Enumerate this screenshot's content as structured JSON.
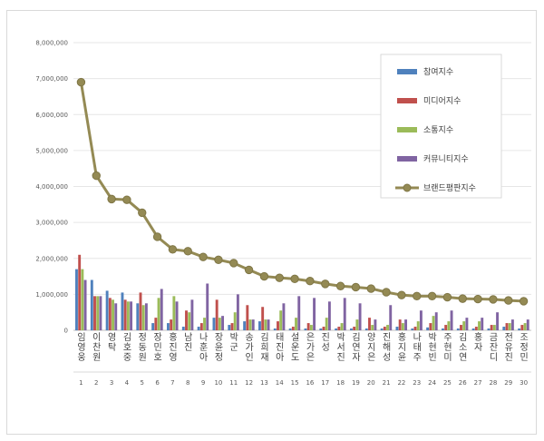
{
  "chart_data": {
    "type": "bar",
    "ylim": [
      0,
      8000000
    ],
    "yticks": [
      "0",
      "1,000,000",
      "2,000,000",
      "3,000,000",
      "4,000,000",
      "5,000,000",
      "6,000,000",
      "7,000,000",
      "8,000,000"
    ],
    "categories": [
      "임영웅",
      "이찬원",
      "영탁",
      "김호중",
      "정동원",
      "장민호",
      "홍진영",
      "남진",
      "나훈아",
      "장윤정",
      "박군",
      "송가인",
      "김희재",
      "태진아",
      "설운도",
      "은가은",
      "진성",
      "박서진",
      "김연자",
      "양지은",
      "진해성",
      "홍지윤",
      "나태주",
      "박현빈",
      "주현미",
      "김소연",
      "홍자",
      "금잔디",
      "전유진",
      "조정민"
    ],
    "ranks": [
      "1",
      "2",
      "3",
      "4",
      "5",
      "6",
      "7",
      "8",
      "9",
      "10",
      "11",
      "12",
      "13",
      "14",
      "15",
      "16",
      "17",
      "18",
      "19",
      "20",
      "21",
      "22",
      "23",
      "24",
      "25",
      "26",
      "27",
      "28",
      "29",
      "30"
    ],
    "series": [
      {
        "name": "참여지수",
        "color": "#4f81bd",
        "type": "bar",
        "values": [
          1700000,
          1400000,
          1100000,
          1050000,
          750000,
          200000,
          200000,
          100000,
          100000,
          350000,
          150000,
          250000,
          250000,
          50000,
          50000,
          50000,
          50000,
          50000,
          50000,
          50000,
          50000,
          100000,
          50000,
          80000,
          50000,
          50000,
          50000,
          50000,
          100000,
          50000
        ]
      },
      {
        "name": "미디어지수",
        "color": "#c0504d",
        "type": "bar",
        "values": [
          2100000,
          950000,
          900000,
          850000,
          1050000,
          350000,
          300000,
          550000,
          200000,
          850000,
          200000,
          700000,
          650000,
          250000,
          100000,
          200000,
          100000,
          100000,
          100000,
          350000,
          100000,
          300000,
          100000,
          200000,
          150000,
          150000,
          100000,
          150000,
          200000,
          150000
        ]
      },
      {
        "name": "소통지수",
        "color": "#9bbb59",
        "type": "bar",
        "values": [
          1700000,
          950000,
          850000,
          800000,
          700000,
          900000,
          950000,
          500000,
          350000,
          350000,
          500000,
          300000,
          300000,
          550000,
          350000,
          150000,
          350000,
          200000,
          300000,
          150000,
          150000,
          200000,
          250000,
          400000,
          250000,
          250000,
          250000,
          150000,
          200000,
          200000
        ]
      },
      {
        "name": "커뮤니티지수",
        "color": "#8064a2",
        "type": "bar",
        "values": [
          1400000,
          950000,
          750000,
          800000,
          750000,
          1150000,
          800000,
          850000,
          1300000,
          400000,
          1000000,
          300000,
          300000,
          750000,
          950000,
          900000,
          800000,
          900000,
          750000,
          300000,
          700000,
          300000,
          550000,
          500000,
          550000,
          350000,
          350000,
          500000,
          300000,
          300000
        ]
      },
      {
        "name": "브랜드평판지수",
        "color": "#948a54",
        "type": "line",
        "values": [
          6900000,
          4300000,
          3650000,
          3630000,
          3270000,
          2600000,
          2250000,
          2200000,
          2040000,
          1960000,
          1870000,
          1680000,
          1500000,
          1460000,
          1430000,
          1370000,
          1290000,
          1230000,
          1200000,
          1160000,
          1060000,
          980000,
          950000,
          950000,
          920000,
          880000,
          870000,
          860000,
          830000,
          810000
        ]
      }
    ]
  }
}
